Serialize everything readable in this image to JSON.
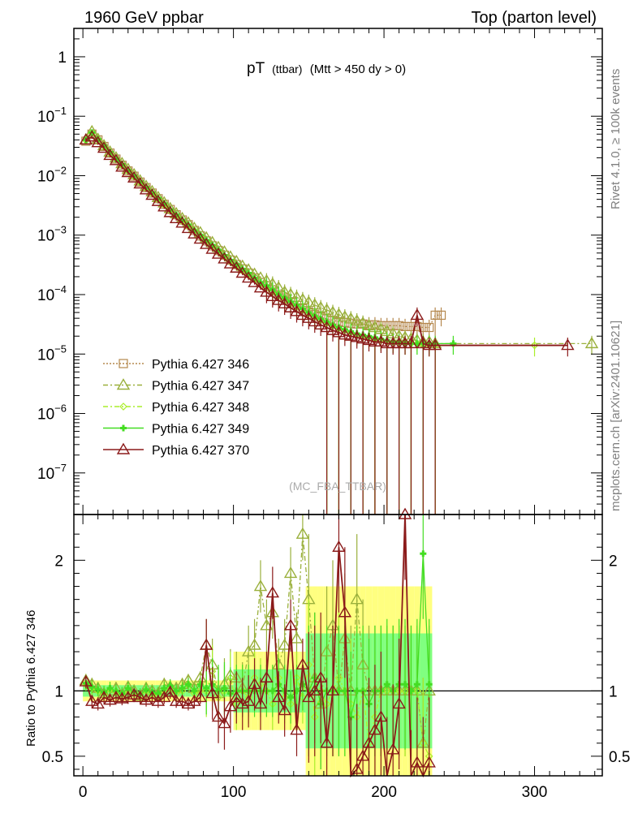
{
  "header": {
    "left": "1960 GeV ppbar",
    "right": "Top (parton level)"
  },
  "side_labels": {
    "rivet": "Rivet 4.1.0, ≥ 100k events",
    "mcplots": "mcplots.cern.ch [arXiv:2401.10621]"
  },
  "chart_data": [
    {
      "type": "line",
      "title_main": "pT",
      "title_small": "(ttbar)",
      "title_rest": "(Mtt > 450 dy > 0)",
      "watermark": "(MC_FBA_TTBAR)",
      "yscale": "log",
      "xlim": [
        -6,
        345
      ],
      "ylim": [
        2e-08,
        3
      ],
      "ytick_mantissa": [
        "1",
        "10",
        "10",
        "10",
        "10",
        "10",
        "10",
        "10"
      ],
      "ytick_exp": [
        "",
        "−1",
        "−2",
        "−3",
        "−4",
        "−5",
        "−6",
        "−7"
      ],
      "ytick_values": [
        1,
        0.1,
        0.01,
        0.001,
        0.0001,
        1e-05,
        1e-06,
        1e-07
      ],
      "series": [
        {
          "name": "Pythia 6.427 346",
          "color": "#b5884e",
          "style": "dotted",
          "marker": "square",
          "x": [
            2,
            6,
            10,
            14,
            18,
            22,
            26,
            30,
            34,
            38,
            42,
            46,
            50,
            54,
            58,
            62,
            66,
            70,
            74,
            78,
            82,
            86,
            90,
            94,
            98,
            102,
            106,
            110,
            114,
            118,
            122,
            126,
            130,
            134,
            138,
            142,
            146,
            150,
            154,
            158,
            162,
            166,
            170,
            174,
            178,
            182,
            186,
            190,
            194,
            198,
            202,
            206,
            210,
            214,
            218,
            222,
            226,
            230,
            234,
            238
          ],
          "y": [
            0.038,
            0.05,
            0.04,
            0.031,
            0.024,
            0.019,
            0.015,
            0.012,
            0.0098,
            0.0078,
            0.0063,
            0.0051,
            0.0041,
            0.0033,
            0.0027,
            0.0022,
            0.0018,
            0.0015,
            0.0012,
            0.00097,
            0.0008,
            0.00066,
            0.00055,
            0.00046,
            0.00038,
            0.00032,
            0.00027,
            0.00023,
            0.00019,
            0.00016,
            0.00014,
            0.00012,
            0.0001,
            8.8e-05,
            7.6e-05,
            6.6e-05,
            5.8e-05,
            5.1e-05,
            4.6e-05,
            4.2e-05,
            3.9e-05,
            3.7e-05,
            3.5e-05,
            3.4e-05,
            3.3e-05,
            3.2e-05,
            3.2e-05,
            3.1e-05,
            3.1e-05,
            3e-05,
            3e-05,
            3e-05,
            3e-05,
            2.9e-05,
            2.9e-05,
            2.9e-05,
            2.8e-05,
            2.8e-05,
            4.5e-05,
            4.5e-05
          ]
        },
        {
          "name": "Pythia 6.427 347",
          "color": "#9ab03c",
          "style": "dashdot",
          "marker": "triangle",
          "x": [
            2,
            6,
            10,
            14,
            18,
            22,
            26,
            30,
            34,
            38,
            42,
            46,
            50,
            54,
            58,
            62,
            66,
            70,
            74,
            78,
            82,
            86,
            90,
            94,
            98,
            102,
            106,
            110,
            114,
            118,
            122,
            126,
            130,
            134,
            138,
            142,
            146,
            150,
            154,
            158,
            162,
            166,
            170,
            174,
            178,
            182,
            186,
            190,
            194,
            198,
            202,
            206,
            210,
            214,
            218,
            222,
            226,
            230,
            234,
            338
          ],
          "y": [
            0.04,
            0.055,
            0.041,
            0.032,
            0.025,
            0.02,
            0.016,
            0.0128,
            0.0104,
            0.0082,
            0.0066,
            0.0054,
            0.0043,
            0.0035,
            0.0028,
            0.0023,
            0.0019,
            0.0016,
            0.0013,
            0.0011,
            0.0009,
            0.00075,
            0.00062,
            0.00052,
            0.00043,
            0.00036,
            0.0003,
            0.00026,
            0.00022,
            0.00019,
            0.00017,
            0.00015,
            0.00013,
            0.00011,
            0.0001,
            9e-05,
            8.2e-05,
            7.4e-05,
            6.7e-05,
            6e-05,
            5.5e-05,
            5e-05,
            4.6e-05,
            4.2e-05,
            3.9e-05,
            3.6e-05,
            3.3e-05,
            3e-05,
            2.8e-05,
            2.6e-05,
            2.4e-05,
            2.2e-05,
            2e-05,
            1.9e-05,
            1.8e-05,
            1.7e-05,
            1.6e-05,
            1.6e-05,
            1.5e-05,
            1.5e-05
          ]
        },
        {
          "name": "Pythia 6.427 348",
          "color": "#aaee2a",
          "style": "dashdot",
          "marker": "diamond",
          "x": [
            2,
            6,
            10,
            14,
            18,
            22,
            26,
            30,
            34,
            38,
            42,
            46,
            50,
            54,
            58,
            62,
            66,
            70,
            74,
            78,
            82,
            86,
            90,
            94,
            98,
            102,
            106,
            110,
            114,
            118,
            122,
            126,
            130,
            134,
            138,
            142,
            146,
            150,
            154,
            158,
            162,
            166,
            170,
            174,
            178,
            182,
            186,
            190,
            194,
            198,
            202,
            206,
            210,
            214,
            218,
            222,
            226,
            230,
            234,
            300
          ],
          "y": [
            0.039,
            0.052,
            0.04,
            0.031,
            0.024,
            0.019,
            0.015,
            0.012,
            0.0097,
            0.0077,
            0.0062,
            0.005,
            0.004,
            0.0032,
            0.0026,
            0.0021,
            0.0017,
            0.0014,
            0.0012,
            0.00095,
            0.00078,
            0.00064,
            0.00053,
            0.00044,
            0.00036,
            0.0003,
            0.00025,
            0.00021,
            0.00018,
            0.00015,
            0.00013,
            0.00011,
            9.5e-05,
            8e-05,
            7e-05,
            6.2e-05,
            5.5e-05,
            4.8e-05,
            4.2e-05,
            3.7e-05,
            3.3e-05,
            3e-05,
            2.7e-05,
            2.5e-05,
            2.3e-05,
            2.1e-05,
            2e-05,
            1.9e-05,
            1.8e-05,
            1.7e-05,
            1.6e-05,
            1.6e-05,
            1.5e-05,
            1.5e-05,
            1.5e-05,
            1.5e-05,
            1.4e-05,
            1.4e-05,
            1.4e-05,
            1.4e-05
          ]
        },
        {
          "name": "Pythia 6.427 349",
          "color": "#44dd22",
          "style": "solid",
          "marker": "cross",
          "x": [
            2,
            6,
            10,
            14,
            18,
            22,
            26,
            30,
            34,
            38,
            42,
            46,
            50,
            54,
            58,
            62,
            66,
            70,
            74,
            78,
            82,
            86,
            90,
            94,
            98,
            102,
            106,
            110,
            114,
            118,
            122,
            126,
            130,
            134,
            138,
            142,
            146,
            150,
            154,
            158,
            162,
            166,
            170,
            174,
            178,
            182,
            186,
            190,
            194,
            198,
            202,
            206,
            210,
            214,
            218,
            222,
            226,
            230,
            234,
            246
          ],
          "y": [
            0.04,
            0.053,
            0.041,
            0.032,
            0.025,
            0.019,
            0.0155,
            0.0123,
            0.01,
            0.008,
            0.0064,
            0.0052,
            0.0042,
            0.0034,
            0.0027,
            0.0022,
            0.0018,
            0.0015,
            0.0012,
            0.001,
            0.00082,
            0.00068,
            0.00056,
            0.00046,
            0.00038,
            0.00032,
            0.00027,
            0.00023,
            0.00019,
            0.00016,
            0.00014,
            0.00012,
            0.0001,
            8.8e-05,
            7.6e-05,
            6.6e-05,
            5.8e-05,
            5e-05,
            4.4e-05,
            3.9e-05,
            3.5e-05,
            3.1e-05,
            2.8e-05,
            2.6e-05,
            2.4e-05,
            2.2e-05,
            2.1e-05,
            2e-05,
            1.9e-05,
            1.8e-05,
            1.7e-05,
            1.6e-05,
            1.6e-05,
            1.5e-05,
            1.5e-05,
            1.5e-05,
            1.5e-05,
            1.5e-05,
            1.5e-05,
            1.5e-05
          ]
        },
        {
          "name": "Pythia 6.427 370",
          "color": "#8b1a1a",
          "style": "solid",
          "marker": "triangle",
          "x": [
            2,
            6,
            10,
            14,
            18,
            22,
            26,
            30,
            34,
            38,
            42,
            46,
            50,
            54,
            58,
            62,
            66,
            70,
            74,
            78,
            82,
            86,
            90,
            94,
            98,
            102,
            106,
            110,
            114,
            118,
            122,
            126,
            130,
            134,
            138,
            142,
            146,
            150,
            154,
            158,
            162,
            166,
            170,
            174,
            178,
            182,
            186,
            190,
            194,
            198,
            202,
            206,
            210,
            214,
            218,
            222,
            226,
            230,
            234,
            322
          ],
          "y": [
            0.04,
            0.045,
            0.036,
            0.029,
            0.022,
            0.018,
            0.014,
            0.0113,
            0.0092,
            0.0073,
            0.0058,
            0.0047,
            0.0037,
            0.003,
            0.0024,
            0.0019,
            0.0016,
            0.0013,
            0.00105,
            0.00086,
            0.0007,
            0.00058,
            0.00048,
            0.0004,
            0.00033,
            0.00028,
            0.00023,
            0.00019,
            0.00016,
            0.00013,
            0.00011,
            9.3e-05,
            8e-05,
            7e-05,
            6e-05,
            5.2e-05,
            4.5e-05,
            4e-05,
            3.5e-05,
            3.1e-05,
            2.8e-05,
            2.5e-05,
            2.3e-05,
            2.1e-05,
            2e-05,
            1.9e-05,
            1.8e-05,
            1.7e-05,
            1.6e-05,
            1.6e-05,
            1.5e-05,
            1.5e-05,
            1.5e-05,
            1.5e-05,
            1.5e-05,
            4.5e-05,
            1.5e-05,
            1.4e-05,
            1.4e-05,
            1.4e-05
          ]
        }
      ]
    },
    {
      "type": "line",
      "ylabel": "Ratio to Pythia 6.427 346",
      "xlim": [
        -6,
        345
      ],
      "ylim": [
        0.35,
        2.35
      ],
      "xticks": [
        0,
        100,
        200,
        300
      ],
      "xtick_labels": [
        "0",
        "100",
        "200",
        "300"
      ],
      "yticks": [
        0.5,
        1,
        2
      ],
      "ytick_labels": [
        "0.5",
        "1",
        "2"
      ],
      "reference": 1.0,
      "band_colors": [
        "#ffff80",
        "#80ff80"
      ],
      "series_x": [
        2,
        6,
        10,
        14,
        18,
        22,
        26,
        30,
        34,
        38,
        42,
        46,
        50,
        54,
        58,
        62,
        66,
        70,
        74,
        78,
        82,
        86,
        90,
        94,
        98,
        102,
        106,
        110,
        114,
        118,
        122,
        126,
        130,
        134,
        138,
        142,
        146,
        150,
        154,
        158,
        162,
        166,
        170,
        174,
        178,
        182,
        186,
        190,
        194,
        198,
        202,
        206,
        210,
        214,
        218,
        222,
        226,
        230
      ],
      "ratios": [
        {
          "name": "Pythia 6.427 347",
          "color": "#9ab03c",
          "y": [
            1.08,
            1.05,
            1.02,
            0.98,
            1.0,
            1.02,
            0.97,
            1.03,
            1.0,
            0.96,
            1.02,
            1.0,
            0.98,
            1.05,
            1.03,
            1.02,
            1.05,
            1.08,
            1.02,
            1.1,
            1.35,
            1.2,
            0.98,
            1.05,
            1.12,
            1.1,
            1.02,
            1.3,
            1.35,
            1.8,
            1.5,
            1.6,
            1.2,
            1.35,
            1.9,
            1.4,
            2.2,
            1.7,
            1.1,
            0.9,
            1.3,
            1.5,
            1.0,
            1.4,
            1.0,
            1.7,
            1.2,
            1.0,
            1.0,
            1.0,
            1.0,
            1.0,
            1.0,
            1.0,
            1.0,
            1.0,
            0.6,
            1.0
          ]
        },
        {
          "name": "Pythia 6.427 348",
          "color": "#aaee2a",
          "y": [
            1.05,
            1.02,
            1.0,
            0.97,
            1.01,
            0.99,
            0.96,
            1.0,
            0.98,
            0.95,
            1.0,
            0.97,
            0.96,
            1.0,
            1.02,
            0.98,
            1.0,
            1.05,
            0.98,
            1.0,
            1.0,
            1.15,
            0.95,
            1.0,
            1.1,
            0.9,
            1.0,
            0.95,
            1.1,
            1.05,
            1.0,
            0.9,
            1.1,
            0.95,
            0.9,
            1.1,
            0.95,
            1.2,
            0.8,
            1.0,
            0.9,
            1.0,
            1.1,
            1.0,
            0.9,
            0.8,
            1.0,
            0.6,
            0.8,
            1.0,
            1.0,
            1.0,
            1.0,
            1.0,
            1.0,
            1.0,
            0.6,
            0.5
          ]
        },
        {
          "name": "Pythia 6.427 349",
          "color": "#44dd22",
          "y": [
            1.06,
            1.03,
            1.01,
            0.99,
            1.02,
            1.0,
            0.98,
            1.02,
            0.99,
            0.97,
            1.01,
            0.99,
            0.98,
            1.02,
            1.04,
            1.0,
            1.02,
            1.05,
            1.0,
            1.05,
            1.02,
            1.05,
            1.0,
            1.02,
            0.98,
            1.0,
            1.0,
            1.0,
            1.0,
            1.0,
            1.0,
            1.0,
            1.05,
            1.0,
            0.95,
            1.0,
            1.05,
            1.0,
            1.1,
            0.9,
            1.0,
            1.0,
            1.0,
            1.0,
            0.8,
            1.0,
            1.0,
            0.9,
            1.0,
            1.0,
            1.05,
            1.0,
            1.05,
            1.05,
            1.0,
            1.05,
            2.05,
            1.05
          ]
        },
        {
          "name": "Pythia 6.427 370",
          "color": "#8b1a1a",
          "y": [
            1.07,
            0.92,
            0.9,
            0.95,
            0.93,
            0.95,
            0.94,
            0.95,
            0.97,
            0.95,
            0.93,
            0.95,
            0.92,
            0.95,
            0.99,
            0.92,
            0.92,
            0.9,
            0.92,
            0.95,
            1.35,
            0.98,
            0.8,
            0.75,
            0.88,
            0.95,
            0.9,
            0.92,
            1.05,
            0.9,
            1.1,
            1.75,
            0.95,
            0.85,
            1.5,
            0.7,
            1.2,
            0.95,
            1.0,
            1.1,
            0.6,
            1.0,
            2.1,
            1.6,
            0.3,
            0.4,
            0.5,
            0.6,
            0.7,
            0.8,
            0.3,
            0.55,
            0.9,
            2.35,
            0.2,
            0.45,
            0.3,
            0.45
          ]
        }
      ]
    }
  ]
}
